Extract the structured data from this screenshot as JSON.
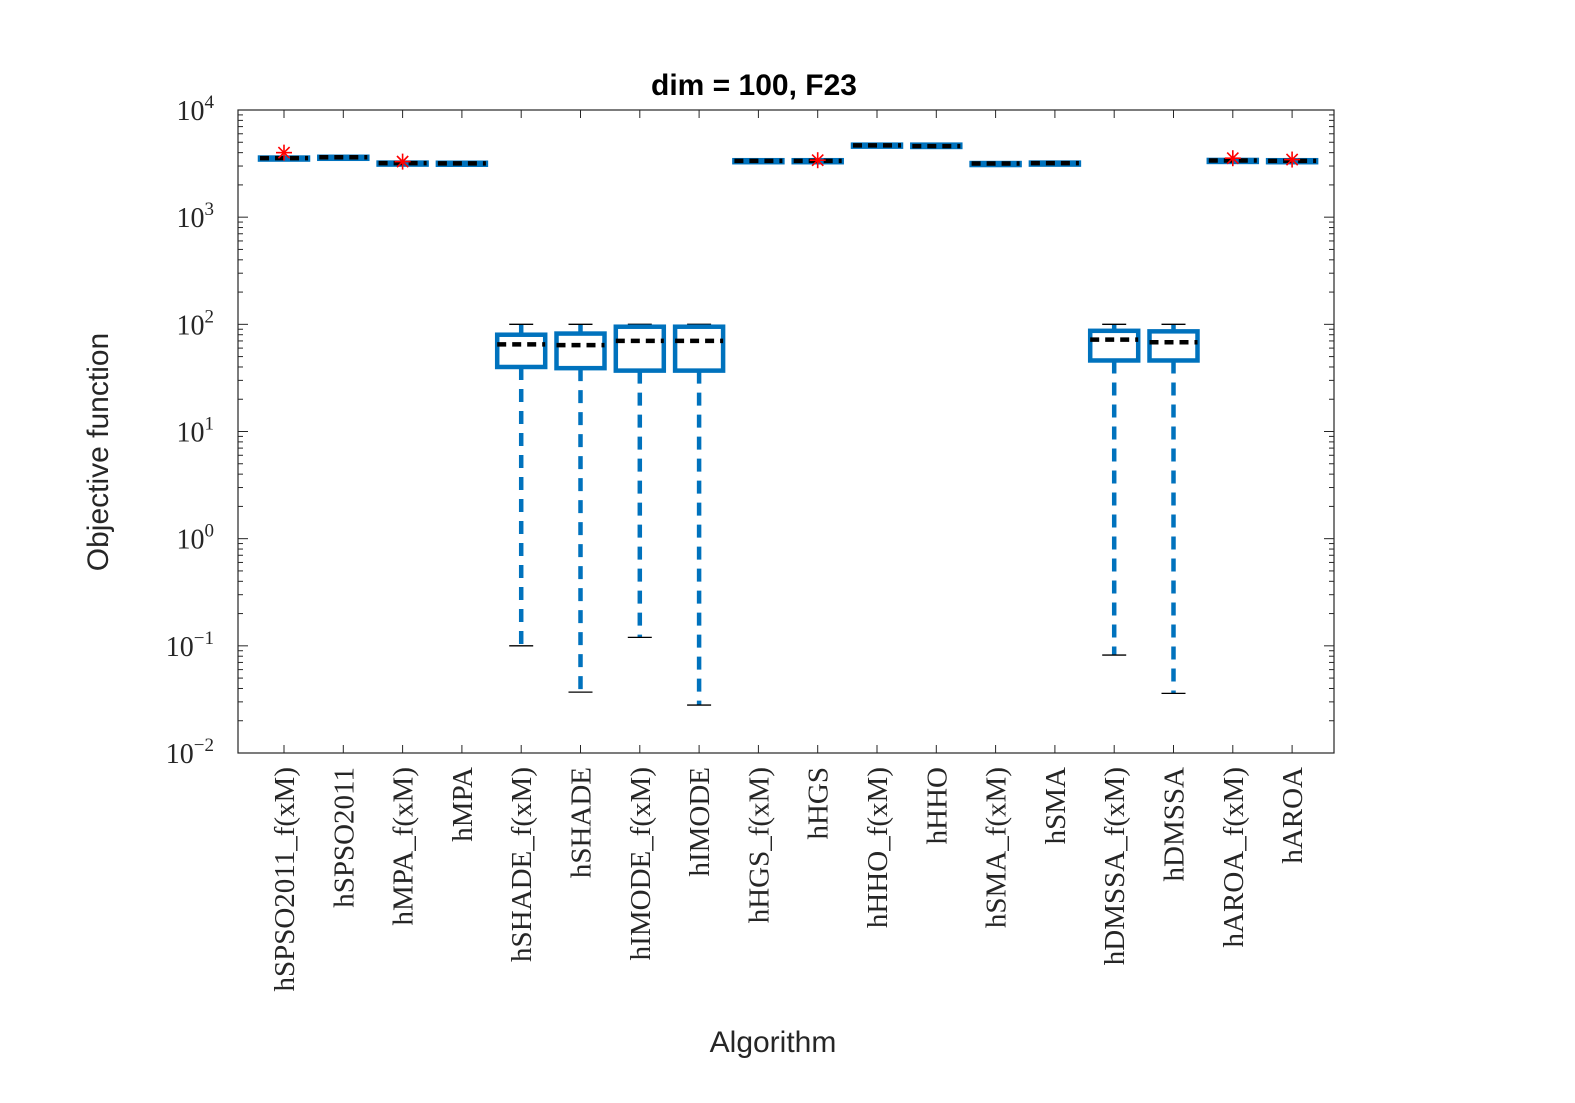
{
  "chart_data": {
    "type": "box",
    "title": "dim = 100,  F23",
    "xlabel": "Algorithm",
    "ylabel": "Objective function",
    "yscale": "log",
    "ylim": [
      0.01,
      10000
    ],
    "yticks": [
      {
        "base": "10",
        "exp": "4",
        "value": 10000
      },
      {
        "base": "10",
        "exp": "3",
        "value": 1000
      },
      {
        "base": "10",
        "exp": "2",
        "value": 100
      },
      {
        "base": "10",
        "exp": "1",
        "value": 10
      },
      {
        "base": "10",
        "exp": "0",
        "value": 1
      },
      {
        "base": "10",
        "exp": "−1",
        "value": 0.1
      },
      {
        "base": "10",
        "exp": "−2",
        "value": 0.01
      }
    ],
    "colors": {
      "box": "#0072BD",
      "median": "#000000",
      "outlier": "#FF0000",
      "whisker_cap": "#000000",
      "axis": "#262626"
    },
    "categories": [
      "hSPSO2011_f(xM)",
      "hSPSO2011",
      "hMPA_f(xM)",
      "hMPA",
      "hSHADE_f(xM)",
      "hSHADE",
      "hIMODE_f(xM)",
      "hIMODE",
      "hHGS_f(xM)",
      "hHGS",
      "hHHO_f(xM)",
      "hHHO",
      "hSMA_f(xM)",
      "hSMA",
      "hDMSSA_f(xM)",
      "hDMSSA",
      "hAROA_f(xM)",
      "hAROA"
    ],
    "boxes": [
      {
        "whisker_low": 3500,
        "q1": 3520,
        "median": 3560,
        "q3": 3600,
        "whisker_high": 3620,
        "outliers": [
          4000
        ]
      },
      {
        "whisker_low": 3580,
        "q1": 3590,
        "median": 3620,
        "q3": 3660,
        "whisker_high": 3680,
        "outliers": []
      },
      {
        "whisker_low": 3130,
        "q1": 3150,
        "median": 3190,
        "q3": 3230,
        "whisker_high": 3250,
        "outliers": [
          3300
        ]
      },
      {
        "whisker_low": 3140,
        "q1": 3160,
        "median": 3180,
        "q3": 3220,
        "whisker_high": 3240,
        "outliers": []
      },
      {
        "whisker_low": 0.1,
        "q1": 40,
        "median": 65,
        "q3": 80,
        "whisker_high": 100,
        "outliers": []
      },
      {
        "whisker_low": 0.037,
        "q1": 39,
        "median": 64,
        "q3": 82,
        "whisker_high": 100,
        "outliers": []
      },
      {
        "whisker_low": 0.12,
        "q1": 37,
        "median": 70,
        "q3": 95,
        "whisker_high": 100,
        "outliers": []
      },
      {
        "whisker_low": 0.028,
        "q1": 37,
        "median": 70,
        "q3": 95,
        "whisker_high": 100,
        "outliers": []
      },
      {
        "whisker_low": 3300,
        "q1": 3320,
        "median": 3350,
        "q3": 3400,
        "whisker_high": 3420,
        "outliers": []
      },
      {
        "whisker_low": 3300,
        "q1": 3320,
        "median": 3350,
        "q3": 3400,
        "whisker_high": 3420,
        "outliers": [
          3400
        ]
      },
      {
        "whisker_low": 4600,
        "q1": 4620,
        "median": 4680,
        "q3": 4750,
        "whisker_high": 4780,
        "outliers": []
      },
      {
        "whisker_low": 4500,
        "q1": 4520,
        "median": 4600,
        "q3": 4750,
        "whisker_high": 4850,
        "outliers": []
      },
      {
        "whisker_low": 3120,
        "q1": 3140,
        "median": 3170,
        "q3": 3200,
        "whisker_high": 3220,
        "outliers": []
      },
      {
        "whisker_low": 3140,
        "q1": 3160,
        "median": 3190,
        "q3": 3230,
        "whisker_high": 3250,
        "outliers": []
      },
      {
        "whisker_low": 0.082,
        "q1": 46,
        "median": 72,
        "q3": 87,
        "whisker_high": 100,
        "outliers": []
      },
      {
        "whisker_low": 0.036,
        "q1": 46,
        "median": 68,
        "q3": 86,
        "whisker_high": 100,
        "outliers": []
      },
      {
        "whisker_low": 3330,
        "q1": 3350,
        "median": 3380,
        "q3": 3420,
        "whisker_high": 3440,
        "outliers": [
          3550
        ]
      },
      {
        "whisker_low": 3300,
        "q1": 3320,
        "median": 3350,
        "q3": 3400,
        "whisker_high": 3420,
        "outliers": [
          3450
        ]
      }
    ]
  }
}
